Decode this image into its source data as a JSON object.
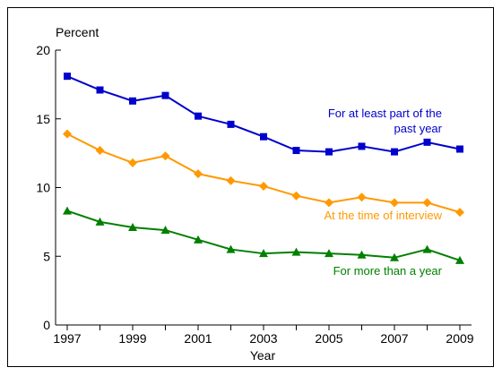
{
  "chart_data": {
    "type": "line",
    "title": "",
    "ylabel": "Percent",
    "xlabel": "Year",
    "x": [
      1997,
      1998,
      1999,
      2000,
      2001,
      2002,
      2003,
      2004,
      2005,
      2006,
      2007,
      2008,
      2009
    ],
    "xticks": [
      "1997",
      "1999",
      "2001",
      "2003",
      "2005",
      "2007",
      "2009"
    ],
    "yticks": [
      "0",
      "5",
      "10",
      "15",
      "20"
    ],
    "ylim": [
      0,
      20
    ],
    "xlim": [
      1997,
      2009
    ],
    "grid": false,
    "series": [
      {
        "name_lines": [
          "For at least part of the",
          "past year"
        ],
        "color": "#0000cc",
        "marker": "square",
        "values": [
          18.1,
          17.1,
          16.3,
          16.7,
          15.2,
          14.6,
          13.7,
          12.7,
          12.6,
          13.0,
          12.6,
          13.3,
          12.8
        ]
      },
      {
        "name_lines": [
          "At the time of interview"
        ],
        "color": "#ff9900",
        "marker": "diamond",
        "values": [
          13.9,
          12.7,
          11.8,
          12.3,
          11.0,
          10.5,
          10.1,
          9.4,
          8.9,
          9.3,
          8.9,
          8.9,
          8.2
        ]
      },
      {
        "name_lines": [
          "For more than a year"
        ],
        "color": "#008000",
        "marker": "triangle",
        "values": [
          8.3,
          7.5,
          7.1,
          6.9,
          6.2,
          5.5,
          5.2,
          5.3,
          5.2,
          5.1,
          4.9,
          5.5,
          4.7
        ]
      }
    ]
  }
}
